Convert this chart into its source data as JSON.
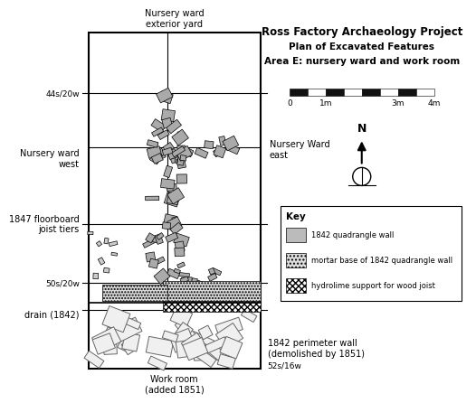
{
  "title_line1": "Ross Factory Archaeology Project",
  "title_line2": "Plan of Excavated Features",
  "title_line3": "Area E: nursery ward and work room",
  "bg_color": "#ffffff",
  "labels_left": {
    "44s20w": "44s/20w",
    "nursery_ward_west": "Nursery ward\nwest",
    "floorboard": "1847 floorboard\njoist tiers",
    "50s20w": "50s/20w",
    "drain": "drain (1842)"
  },
  "labels_right": {
    "nursery_ward_east": "Nursery Ward\neast",
    "perimeter_wall": "1842 perimeter wall\n(demolished by 1851)",
    "52s16w": "52s/16w"
  },
  "labels_top": "Nursery ward\nexterior yard",
  "labels_bottom": "Work room\n(added 1851)",
  "key_title": "Key",
  "key_items": [
    {
      "label": "1842 quadrangle wall",
      "facecolor": "#bbbbbb",
      "hatch": ""
    },
    {
      "label": "mortar base of 1842 quadrangle wall",
      "facecolor": "#dddddd",
      "hatch": "...."
    },
    {
      "label": "hydrolime support for wood joist",
      "facecolor": "#000000",
      "hatch": "////"
    }
  ],
  "scale_labels": [
    "0",
    "1m",
    "3m",
    "4m"
  ],
  "north_label": "N"
}
